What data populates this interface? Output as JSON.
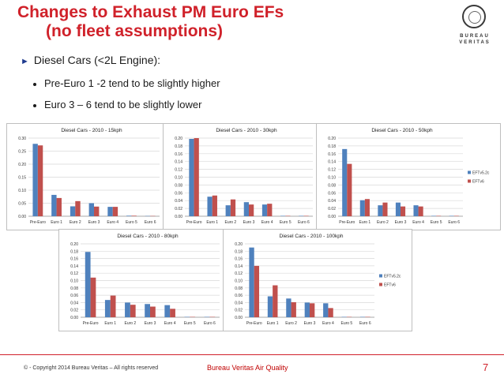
{
  "slide": {
    "title_line1": "Changes to Exhaust PM Euro EFs",
    "title_line2": "(no fleet assumptions)",
    "bullet_arrow": "►",
    "bullet": "Diesel Cars (<2L Engine):",
    "sub_bullets": [
      "Pre-Euro 1 -2 tend to be slightly higher",
      "Euro 3 – 6 tend to be slightly lower"
    ],
    "logo_text_1": "BUREAU",
    "logo_text_2": "VERITAS",
    "footer_left": "© - Copyright 2014 Bureau Veritas – All rights reserved",
    "footer_mid": "Bureau Veritas Air Quality",
    "page_number": "7"
  },
  "colors": {
    "series1": "#4f81bd",
    "series2": "#c0504d",
    "title_red": "#d0212a"
  },
  "chart_data": [
    {
      "type": "bar",
      "title": "Diesel Cars - 2010 - 15kph",
      "categories": [
        "Pre-Euro",
        "Euro 1",
        "Euro 2",
        "Euro 3",
        "Euro 4",
        "Euro 5",
        "Euro 6"
      ],
      "series": [
        {
          "values": [
            0.278,
            0.082,
            0.038,
            0.05,
            0.036,
            0.002,
            0.001
          ]
        },
        {
          "values": [
            0.272,
            0.07,
            0.058,
            0.037,
            0.036,
            0.002,
            0.001
          ]
        }
      ],
      "ylim": [
        0,
        0.3
      ],
      "yticks": [
        "0.00",
        "0.05",
        "0.10",
        "0.15",
        "0.20",
        "0.25",
        "0.30"
      ],
      "legend": []
    },
    {
      "type": "bar",
      "title": "Diesel Cars - 2010 - 30kph",
      "categories": [
        "Pre-Euro",
        "Euro 1",
        "Euro 2",
        "Euro 3",
        "Euro 4",
        "Euro 5",
        "Euro 6"
      ],
      "series": [
        {
          "values": [
            0.198,
            0.05,
            0.028,
            0.036,
            0.03,
            0.001,
            0.001
          ]
        },
        {
          "values": [
            0.2,
            0.053,
            0.043,
            0.03,
            0.032,
            0.001,
            0.001
          ]
        }
      ],
      "ylim": [
        0,
        0.2
      ],
      "yticks": [
        "0.00",
        "0.02",
        "0.04",
        "0.06",
        "0.08",
        "0.10",
        "0.12",
        "0.14",
        "0.16",
        "0.18",
        "0.20"
      ],
      "legend": []
    },
    {
      "type": "bar",
      "title": "Diesel Cars - 2010 - 50kph",
      "categories": [
        "Pre-Euro",
        "Euro 1",
        "Euro 2",
        "Euro 3",
        "Euro 4",
        "Euro 5",
        "Euro 6"
      ],
      "series": [
        {
          "name": "EFTv5.2c",
          "values": [
            0.172,
            0.041,
            0.028,
            0.035,
            0.028,
            0.001,
            0.001
          ]
        },
        {
          "name": "EFTv6",
          "values": [
            0.134,
            0.044,
            0.035,
            0.025,
            0.025,
            0.001,
            0.001
          ]
        }
      ],
      "ylim": [
        0,
        0.2
      ],
      "yticks": [
        "0.00",
        "0.02",
        "0.04",
        "0.06",
        "0.08",
        "0.10",
        "0.12",
        "0.14",
        "0.16",
        "0.18",
        "0.20"
      ],
      "legend": [
        "EFTv5.2c",
        "EFTv6"
      ],
      "legend_position": "right"
    },
    {
      "type": "bar",
      "title": "Diesel Cars - 2010 - 80kph",
      "categories": [
        "Pre-Euro",
        "Euro 1",
        "Euro 2",
        "Euro 3",
        "Euro 4",
        "Euro 5",
        "Euro 6"
      ],
      "series": [
        {
          "values": [
            0.178,
            0.047,
            0.04,
            0.036,
            0.033,
            0.001,
            0.001
          ]
        },
        {
          "values": [
            0.108,
            0.059,
            0.034,
            0.029,
            0.023,
            0.001,
            0.001
          ]
        }
      ],
      "ylim": [
        0,
        0.2
      ],
      "yticks": [
        "0.00",
        "0.02",
        "0.04",
        "0.06",
        "0.08",
        "0.10",
        "0.12",
        "0.14",
        "0.16",
        "0.18",
        "0.20"
      ],
      "legend": []
    },
    {
      "type": "bar",
      "title": "Diesel Cars - 2010 - 100kph",
      "categories": [
        "Pre-Euro",
        "Euro 1",
        "Euro 2",
        "Euro 3",
        "Euro 4",
        "Euro 5",
        "Euro 6"
      ],
      "series": [
        {
          "name": "EFTv5.2c",
          "values": [
            0.19,
            0.057,
            0.051,
            0.04,
            0.038,
            0.001,
            0.001
          ]
        },
        {
          "name": "EFTv6",
          "values": [
            0.14,
            0.087,
            0.041,
            0.038,
            0.025,
            0.001,
            0.001
          ]
        }
      ],
      "ylim": [
        0,
        0.2
      ],
      "yticks": [
        "0.00",
        "0.02",
        "0.04",
        "0.06",
        "0.08",
        "0.10",
        "0.12",
        "0.14",
        "0.16",
        "0.18",
        "0.20"
      ],
      "legend": [
        "EFTv5.2c",
        "EFTv6"
      ],
      "legend_position": "right"
    }
  ]
}
